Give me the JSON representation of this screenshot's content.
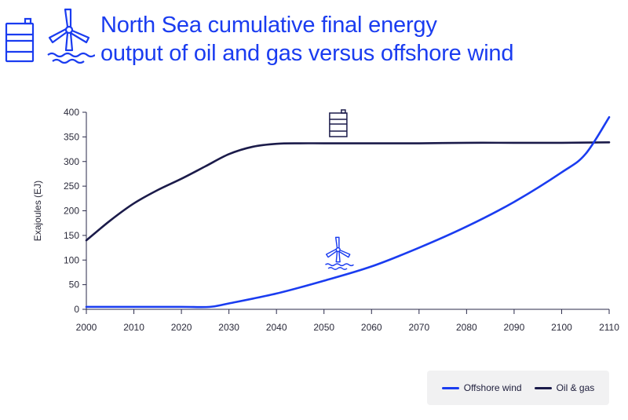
{
  "header": {
    "title_line1": "North Sea cumulative final energy",
    "title_line2": "output of oil and gas versus offshore wind",
    "icons": [
      "oil-barrel-icon",
      "wind-turbine-icon"
    ]
  },
  "colors": {
    "title": "#1a3cf0",
    "offshore_wind": "#1a3cf0",
    "oil_gas": "#1b1b4a",
    "axis": "#2a2a4a",
    "text": "#2a2a3a",
    "legend_bg": "#f1f1f2"
  },
  "chart_data": {
    "type": "line",
    "ylabel": "Exajoules (EJ)",
    "xlabel": "",
    "xlim": [
      2000,
      2110
    ],
    "ylim": [
      0,
      400
    ],
    "x_ticks": [
      2000,
      2010,
      2020,
      2030,
      2040,
      2050,
      2060,
      2070,
      2080,
      2090,
      2100,
      2110
    ],
    "y_ticks": [
      0,
      50,
      100,
      150,
      200,
      250,
      300,
      350,
      400
    ],
    "grid": false,
    "legend_position": "bottom-right",
    "series": [
      {
        "name": "Offshore wind",
        "color": "#1a3cf0",
        "icon": "wind-turbine-icon",
        "x": [
          2000,
          2010,
          2020,
          2026,
          2030,
          2040,
          2050,
          2060,
          2070,
          2080,
          2090,
          2100,
          2105,
          2110
        ],
        "y": [
          5,
          5,
          5,
          5,
          12,
          32,
          58,
          87,
          125,
          168,
          218,
          278,
          315,
          390
        ]
      },
      {
        "name": "Oil & gas",
        "color": "#1b1b4a",
        "icon": "oil-barrel-icon",
        "x": [
          2000,
          2005,
          2010,
          2015,
          2020,
          2025,
          2030,
          2035,
          2040,
          2045,
          2050,
          2060,
          2070,
          2080,
          2090,
          2100,
          2110
        ],
        "y": [
          140,
          180,
          215,
          242,
          265,
          290,
          315,
          330,
          336,
          337,
          337,
          337,
          337,
          338,
          338,
          338,
          339
        ]
      }
    ]
  },
  "legend": {
    "items": [
      {
        "label": "Offshore wind",
        "color": "#1a3cf0"
      },
      {
        "label": "Oil & gas",
        "color": "#1b1b4a"
      }
    ]
  }
}
